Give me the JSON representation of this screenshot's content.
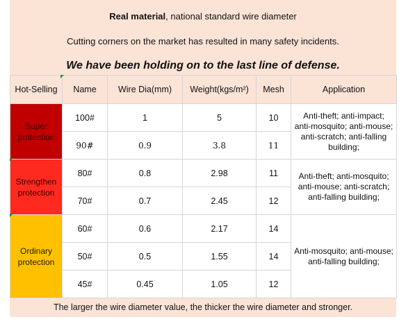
{
  "header": {
    "line1_bold": "Real material",
    "line1_rest": ", national standard wire diameter",
    "line2": "Cutting corners on the market has resulted in many safety incidents.",
    "line3": "We have been holding on to the last line of defense."
  },
  "table": {
    "columns": [
      "Hot-Selling",
      "Name",
      "Wire Dia(mm)",
      "Weight(kgs/m²)",
      "Mesh",
      "Application"
    ],
    "categories": [
      {
        "label": "Super protection",
        "color": "#c00000",
        "application": "Anti-theft; anti-impact; anti-mosquito; anti-mouse; anti-scratch; anti-falling building;",
        "rows": [
          {
            "name": "100#",
            "dia": "1",
            "weight": "5",
            "mesh": "10"
          },
          {
            "name": "90#",
            "dia": "0.9",
            "weight": "3.8",
            "mesh": "11"
          }
        ]
      },
      {
        "label": "Strengthen protection",
        "color": "#ff2a1f",
        "application": "Anti-theft; anti-mosquito; anti-mouse; anti-scratch; anti-falling building;",
        "rows": [
          {
            "name": "80#",
            "dia": "0.8",
            "weight": "2.98",
            "mesh": "11"
          },
          {
            "name": "70#",
            "dia": "0.7",
            "weight": "2.45",
            "mesh": "12"
          }
        ]
      },
      {
        "label": "Ordinary protection",
        "color": "#ffc000",
        "application": "Anti-mosquito; anti-mouse; anti-falling building;",
        "rows": [
          {
            "name": "60#",
            "dia": "0.6",
            "weight": "2.17",
            "mesh": "14"
          },
          {
            "name": "50#",
            "dia": "0.5",
            "weight": "1.55",
            "mesh": "14"
          },
          {
            "name": "45#",
            "dia": "0.45",
            "weight": "1.05",
            "mesh": "12"
          }
        ]
      }
    ]
  },
  "footer": "The larger the wire diameter value, the thicker the wire diameter and stronger."
}
